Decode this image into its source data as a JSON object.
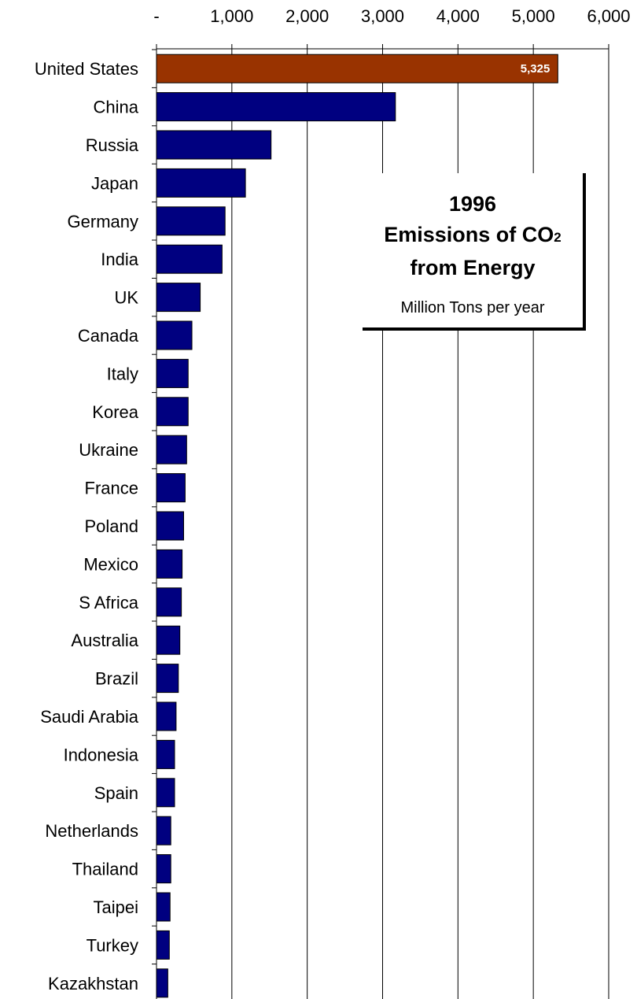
{
  "chart_data": {
    "type": "bar",
    "orientation": "horizontal",
    "title_line1": "1996",
    "title_line2_main": "Emissions of CO",
    "title_line2_sub": "2",
    "title_line3": "from Energy",
    "subtitle": "Million Tons per year",
    "xlim": [
      0,
      6000
    ],
    "x_ticks": [
      0,
      1000,
      2000,
      3000,
      4000,
      5000,
      6000
    ],
    "x_tick_labels": [
      "-",
      "1,000",
      "2,000",
      "3,000",
      "4,000",
      "5,000",
      "6,000"
    ],
    "axis_position": "top",
    "grid": "vertical gridlines",
    "categories": [
      "United States",
      "China",
      "Russia",
      "Japan",
      "Germany",
      "India",
      "UK",
      "Canada",
      "Italy",
      "Korea",
      "Ukraine",
      "France",
      "Poland",
      "Mexico",
      "S Africa",
      "Australia",
      "Brazil",
      "Saudi Arabia",
      "Indonesia",
      "Spain",
      "Netherlands",
      "Thailand",
      "Taipei",
      "Turkey",
      "Kazakhstan"
    ],
    "values": [
      5325,
      3170,
      1520,
      1180,
      910,
      870,
      580,
      470,
      420,
      420,
      400,
      380,
      360,
      340,
      330,
      310,
      290,
      260,
      240,
      240,
      190,
      190,
      180,
      170,
      150
    ],
    "data_labels": [
      {
        "index": 0,
        "text": "5,325"
      }
    ],
    "colors": {
      "highlight": "#993300",
      "bar": "#000080",
      "grid": "#000000"
    }
  }
}
